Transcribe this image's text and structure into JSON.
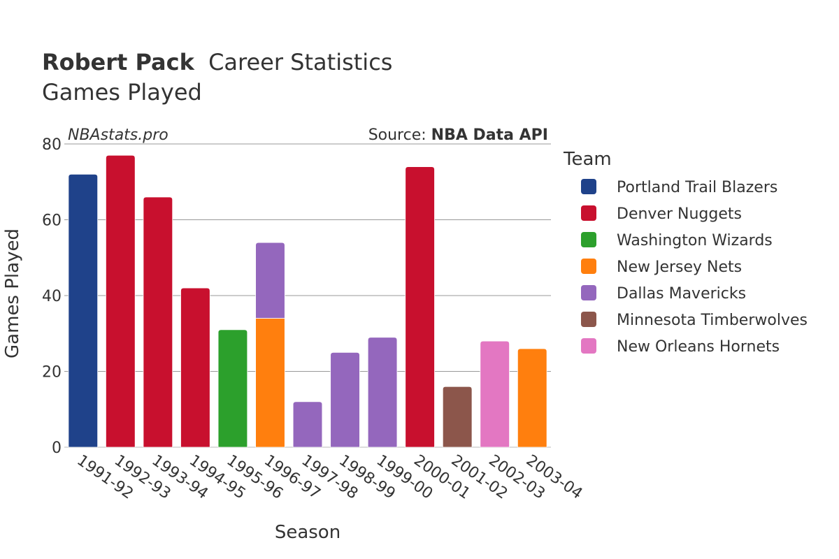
{
  "chart_data": {
    "type": "bar",
    "stacked": true,
    "title": {
      "player": "Robert Pack",
      "rest": "Career Statistics"
    },
    "subtitle": "Games Played",
    "watermark": "NBAstats.pro",
    "source": {
      "label": "Source: ",
      "value": "NBA Data API"
    },
    "xlabel": "Season",
    "ylabel": "Games Played",
    "ylim": [
      0,
      80
    ],
    "yticks": [
      "0",
      "20",
      "40",
      "60",
      "80"
    ],
    "grid": true,
    "legend": {
      "title": "Team",
      "position": "right"
    },
    "categories": [
      "1991-92",
      "1992-93",
      "1993-94",
      "1994-95",
      "1995-96",
      "1996-97",
      "1997-98",
      "1998-99",
      "1999-00",
      "2000-01",
      "2001-02",
      "2002-03",
      "2003-04"
    ],
    "series": [
      {
        "name": "Portland Trail Blazers",
        "color": "#1f428a",
        "values": [
          72,
          0,
          0,
          0,
          0,
          0,
          0,
          0,
          0,
          0,
          0,
          0,
          0
        ]
      },
      {
        "name": "Denver Nuggets",
        "color": "#c8102e",
        "values": [
          0,
          77,
          66,
          42,
          0,
          0,
          0,
          0,
          0,
          74,
          0,
          0,
          0
        ]
      },
      {
        "name": "Washington Wizards",
        "color": "#2ca02c",
        "values": [
          0,
          0,
          0,
          0,
          31,
          0,
          0,
          0,
          0,
          0,
          0,
          0,
          0
        ]
      },
      {
        "name": "New Jersey Nets",
        "color": "#ff7f0e",
        "values": [
          0,
          0,
          0,
          0,
          0,
          34,
          0,
          0,
          0,
          0,
          0,
          0,
          26
        ]
      },
      {
        "name": "Dallas Mavericks",
        "color": "#9467bd",
        "values": [
          0,
          0,
          0,
          0,
          0,
          20,
          12,
          25,
          29,
          0,
          0,
          0,
          0
        ]
      },
      {
        "name": "Minnesota Timberwolves",
        "color": "#8c564b",
        "values": [
          0,
          0,
          0,
          0,
          0,
          0,
          0,
          0,
          0,
          0,
          16,
          0,
          0
        ]
      },
      {
        "name": "New Orleans Hornets",
        "color": "#e377c2",
        "values": [
          0,
          0,
          0,
          0,
          0,
          0,
          0,
          0,
          0,
          0,
          0,
          28,
          0
        ]
      }
    ]
  }
}
